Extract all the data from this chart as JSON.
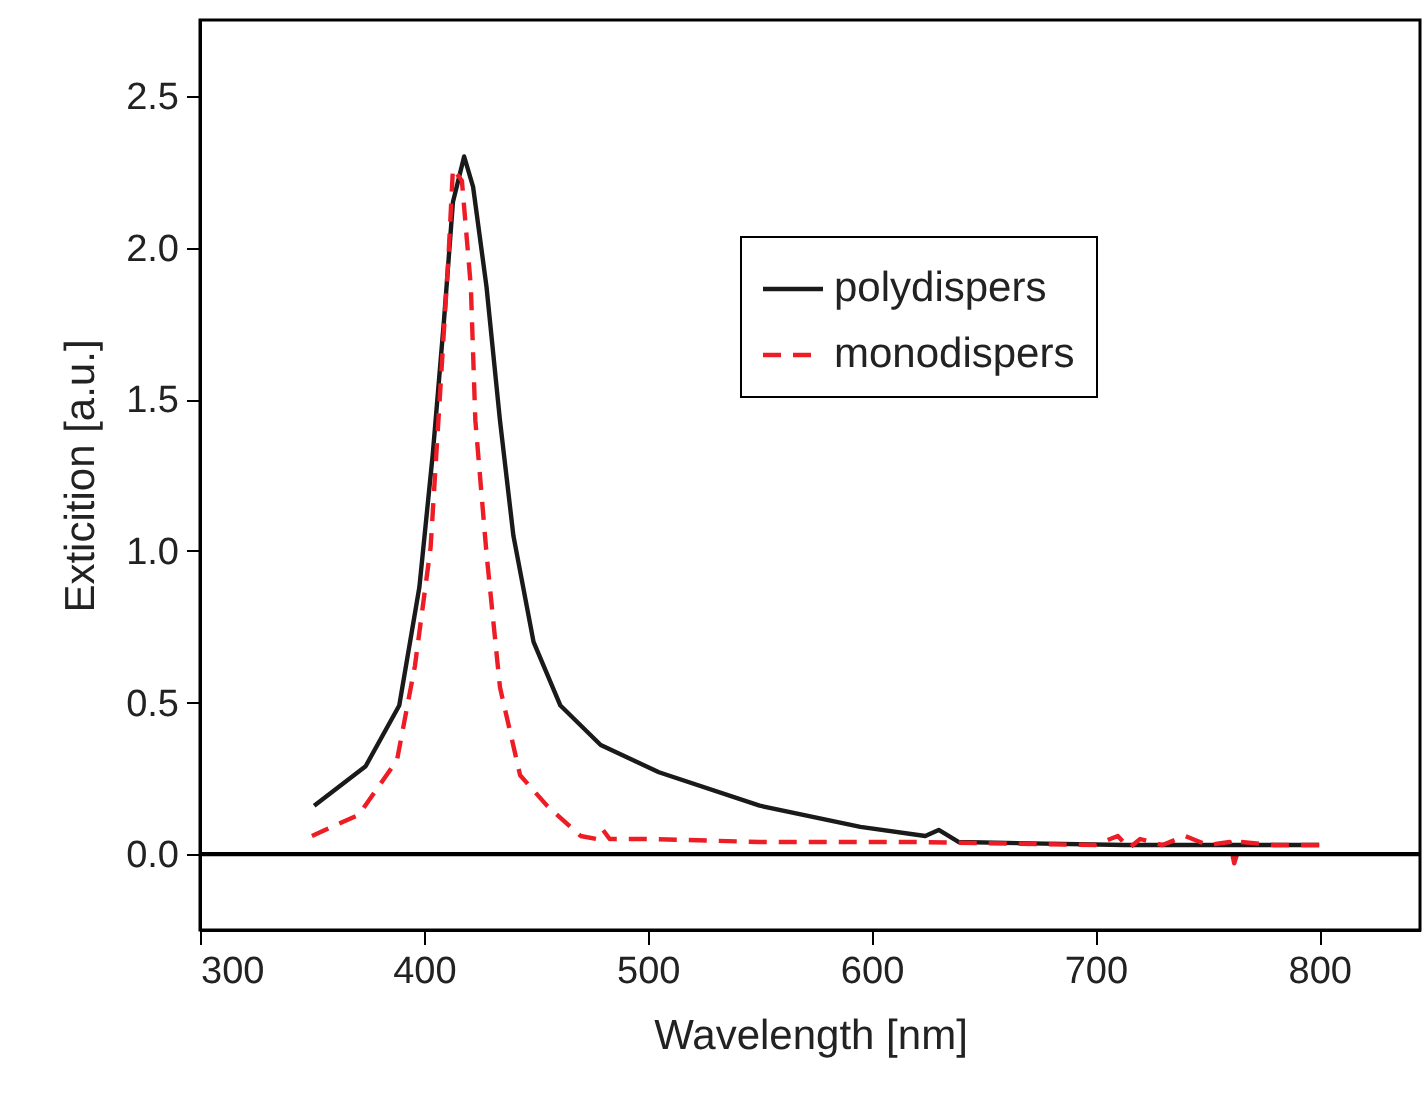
{
  "chart_data": {
    "type": "line",
    "xlabel": "Wavelength [nm]",
    "ylabel": "Exticition [a.u.]",
    "xlim": [
      300,
      845
    ],
    "ylim": [
      -0.25,
      2.75
    ],
    "xticks": [
      300,
      400,
      500,
      600,
      700,
      800
    ],
    "yticks": [
      {
        "value": 0,
        "label": "0.0"
      },
      {
        "value": 0.5,
        "label": "0.5"
      },
      {
        "value": 1,
        "label": "1.0"
      },
      {
        "value": 1.5,
        "label": "1.5"
      },
      {
        "value": 2,
        "label": "2.0"
      },
      {
        "value": 2.5,
        "label": "2.5"
      }
    ],
    "legend": "top right",
    "grid": false,
    "ref_lines": [
      {
        "axis": "y",
        "value": 0,
        "color": "#000000"
      }
    ],
    "series": [
      {
        "name": "polydispers",
        "color": "#1a1a1a",
        "line_style": "solid",
        "x": [
          351,
          374,
          389,
          398,
          404,
          409,
          413,
          418,
          422,
          428,
          434,
          440,
          449,
          461,
          479,
          505,
          550,
          595,
          624,
          630,
          639,
          713,
          800
        ],
        "values": [
          0.16,
          0.29,
          0.49,
          0.88,
          1.32,
          1.76,
          2.15,
          2.3,
          2.2,
          1.87,
          1.43,
          1.05,
          0.7,
          0.49,
          0.36,
          0.27,
          0.16,
          0.09,
          0.06,
          0.08,
          0.04,
          0.03,
          0.03
        ]
      },
      {
        "name": "monodispers",
        "color": "#ee1c25",
        "line_style": "dashed",
        "x": [
          350,
          371,
          388,
          396,
          403,
          407,
          411,
          413,
          417,
          421,
          423,
          428,
          434,
          443,
          455,
          470,
          477,
          480,
          483,
          502,
          550,
          620,
          700,
          710,
          715,
          720,
          730,
          740,
          750,
          760,
          762,
          765,
          780,
          800
        ],
        "values": [
          0.06,
          0.13,
          0.31,
          0.62,
          1.01,
          1.49,
          1.97,
          2.26,
          2.22,
          1.87,
          1.43,
          0.99,
          0.55,
          0.26,
          0.16,
          0.06,
          0.05,
          0.08,
          0.05,
          0.05,
          0.04,
          0.04,
          0.03,
          0.06,
          0.02,
          0.05,
          0.03,
          0.06,
          0.03,
          0.04,
          -0.03,
          0.04,
          0.03,
          0.03
        ]
      }
    ]
  }
}
